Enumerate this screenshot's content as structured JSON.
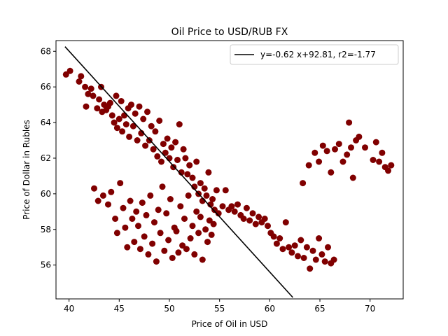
{
  "chart_data": {
    "type": "scatter",
    "title": "Oil Price to USD/RUB FX",
    "xlabel": "Price of Oil in USD",
    "ylabel": "Price of Dollar in Rubles",
    "xlim": [
      38.7,
      73.3
    ],
    "ylim": [
      54.1,
      68.6
    ],
    "xticks": [
      40,
      45,
      50,
      55,
      60,
      65,
      70
    ],
    "yticks": [
      56,
      58,
      60,
      62,
      64,
      66,
      68
    ],
    "grid": false,
    "legend_position": "top-right",
    "marker_color": "#800000",
    "line_color": "#000000",
    "fit_line": {
      "label": "y=-0.62 x+92.81, r2=-1.77",
      "slope": -0.62,
      "intercept": 92.81,
      "x_range": [
        39.6,
        62.3
      ]
    },
    "points": [
      [
        39.7,
        66.7
      ],
      [
        40.1,
        66.9
      ],
      [
        41.0,
        66.3
      ],
      [
        41.2,
        66.6
      ],
      [
        41.6,
        66.0
      ],
      [
        41.7,
        64.9
      ],
      [
        41.9,
        65.6
      ],
      [
        42.2,
        65.9
      ],
      [
        42.4,
        65.5
      ],
      [
        42.8,
        64.8
      ],
      [
        43.0,
        65.3
      ],
      [
        43.2,
        66.0
      ],
      [
        43.3,
        64.6
      ],
      [
        43.5,
        65.0
      ],
      [
        43.7,
        64.7
      ],
      [
        43.9,
        64.9
      ],
      [
        44.1,
        65.1
      ],
      [
        44.3,
        64.4
      ],
      [
        44.5,
        64.0
      ],
      [
        44.7,
        65.5
      ],
      [
        44.8,
        63.7
      ],
      [
        45.0,
        64.2
      ],
      [
        45.2,
        65.2
      ],
      [
        45.3,
        63.5
      ],
      [
        45.5,
        64.4
      ],
      [
        45.7,
        63.9
      ],
      [
        45.9,
        64.8
      ],
      [
        46.0,
        63.2
      ],
      [
        46.2,
        65.0
      ],
      [
        46.4,
        63.8
      ],
      [
        46.6,
        64.5
      ],
      [
        46.8,
        63.0
      ],
      [
        47.0,
        64.9
      ],
      [
        47.2,
        63.4
      ],
      [
        47.4,
        64.2
      ],
      [
        47.6,
        62.7
      ],
      [
        47.8,
        64.6
      ],
      [
        48.0,
        63.0
      ],
      [
        48.2,
        63.8
      ],
      [
        48.4,
        62.5
      ],
      [
        48.6,
        63.5
      ],
      [
        48.8,
        62.1
      ],
      [
        49.0,
        64.1
      ],
      [
        49.2,
        61.8
      ],
      [
        49.4,
        62.8
      ],
      [
        49.6,
        62.3
      ],
      [
        49.8,
        63.1
      ],
      [
        50.0,
        62.0
      ],
      [
        50.2,
        62.6
      ],
      [
        50.4,
        61.5
      ],
      [
        50.6,
        62.9
      ],
      [
        50.8,
        61.9
      ],
      [
        51.0,
        63.9
      ],
      [
        51.2,
        61.2
      ],
      [
        51.4,
        62.5
      ],
      [
        51.6,
        62.0
      ],
      [
        51.8,
        61.1
      ],
      [
        52.0,
        61.6
      ],
      [
        52.3,
        60.9
      ],
      [
        52.5,
        60.4
      ],
      [
        52.7,
        61.8
      ],
      [
        52.9,
        60.0
      ],
      [
        53.1,
        60.6
      ],
      [
        53.3,
        59.6
      ],
      [
        53.5,
        60.3
      ],
      [
        53.7,
        59.9
      ],
      [
        53.9,
        61.2
      ],
      [
        54.1,
        59.4
      ],
      [
        54.3,
        59.7
      ],
      [
        54.5,
        59.1
      ],
      [
        54.7,
        60.2
      ],
      [
        54.9,
        58.9
      ],
      [
        55.3,
        59.3
      ],
      [
        55.6,
        60.2
      ],
      [
        55.9,
        59.1
      ],
      [
        56.2,
        59.3
      ],
      [
        56.5,
        59.0
      ],
      [
        56.8,
        59.4
      ],
      [
        57.1,
        58.8
      ],
      [
        57.4,
        58.6
      ],
      [
        57.7,
        59.2
      ],
      [
        58.0,
        58.5
      ],
      [
        58.3,
        58.9
      ],
      [
        58.6,
        58.3
      ],
      [
        58.9,
        58.7
      ],
      [
        59.2,
        58.4
      ],
      [
        59.5,
        58.6
      ],
      [
        59.8,
        58.2
      ],
      [
        60.1,
        57.8
      ],
      [
        60.4,
        57.6
      ],
      [
        60.7,
        57.2
      ],
      [
        61.0,
        57.5
      ],
      [
        61.3,
        56.9
      ],
      [
        61.6,
        58.4
      ],
      [
        61.9,
        57.0
      ],
      [
        62.2,
        56.7
      ],
      [
        62.5,
        57.1
      ],
      [
        62.8,
        56.5
      ],
      [
        63.1,
        57.4
      ],
      [
        63.4,
        56.4
      ],
      [
        63.7,
        57.0
      ],
      [
        64.0,
        55.8
      ],
      [
        64.3,
        56.8
      ],
      [
        64.6,
        56.3
      ],
      [
        64.9,
        57.5
      ],
      [
        65.2,
        56.6
      ],
      [
        65.5,
        56.2
      ],
      [
        65.8,
        57.0
      ],
      [
        66.1,
        56.1
      ],
      [
        66.4,
        56.3
      ],
      [
        42.5,
        60.3
      ],
      [
        42.9,
        59.6
      ],
      [
        43.4,
        59.9
      ],
      [
        43.9,
        59.4
      ],
      [
        44.2,
        60.1
      ],
      [
        44.6,
        58.6
      ],
      [
        44.8,
        57.8
      ],
      [
        45.1,
        60.6
      ],
      [
        45.4,
        59.2
      ],
      [
        45.6,
        58.1
      ],
      [
        45.8,
        57.0
      ],
      [
        46.1,
        59.6
      ],
      [
        46.3,
        58.6
      ],
      [
        46.5,
        57.3
      ],
      [
        46.7,
        59.0
      ],
      [
        46.9,
        58.2
      ],
      [
        47.1,
        56.9
      ],
      [
        47.3,
        59.5
      ],
      [
        47.5,
        57.6
      ],
      [
        47.7,
        58.8
      ],
      [
        47.9,
        56.6
      ],
      [
        48.1,
        59.9
      ],
      [
        48.3,
        57.2
      ],
      [
        48.5,
        58.4
      ],
      [
        48.7,
        56.2
      ],
      [
        48.9,
        59.1
      ],
      [
        49.1,
        57.8
      ],
      [
        49.3,
        60.4
      ],
      [
        49.5,
        56.8
      ],
      [
        49.7,
        58.9
      ],
      [
        49.9,
        57.4
      ],
      [
        50.1,
        59.7
      ],
      [
        50.3,
        56.4
      ],
      [
        50.5,
        58.1
      ],
      [
        50.7,
        57.9
      ],
      [
        50.9,
        56.7
      ],
      [
        51.1,
        59.3
      ],
      [
        51.3,
        57.1
      ],
      [
        51.5,
        58.6
      ],
      [
        51.7,
        56.9
      ],
      [
        51.9,
        59.9
      ],
      [
        52.1,
        57.5
      ],
      [
        52.3,
        58.2
      ],
      [
        52.5,
        56.6
      ],
      [
        52.7,
        59.0
      ],
      [
        52.9,
        57.8
      ],
      [
        53.1,
        58.7
      ],
      [
        53.3,
        56.3
      ],
      [
        53.6,
        58.0
      ],
      [
        53.8,
        57.3
      ],
      [
        54.0,
        58.5
      ],
      [
        54.2,
        57.7
      ],
      [
        54.4,
        58.3
      ],
      [
        63.3,
        60.6
      ],
      [
        63.9,
        61.6
      ],
      [
        64.5,
        62.3
      ],
      [
        64.9,
        61.8
      ],
      [
        65.3,
        62.7
      ],
      [
        65.7,
        62.4
      ],
      [
        66.1,
        61.2
      ],
      [
        66.5,
        62.5
      ],
      [
        66.9,
        62.8
      ],
      [
        67.3,
        61.8
      ],
      [
        67.7,
        62.2
      ],
      [
        67.9,
        64.0
      ],
      [
        68.1,
        62.6
      ],
      [
        68.3,
        60.9
      ],
      [
        68.6,
        63.0
      ],
      [
        68.9,
        63.2
      ],
      [
        69.5,
        62.6
      ],
      [
        70.3,
        61.9
      ],
      [
        70.6,
        62.9
      ],
      [
        70.9,
        61.8
      ],
      [
        71.2,
        62.3
      ],
      [
        71.5,
        61.5
      ],
      [
        71.8,
        61.3
      ],
      [
        72.1,
        61.6
      ]
    ]
  }
}
